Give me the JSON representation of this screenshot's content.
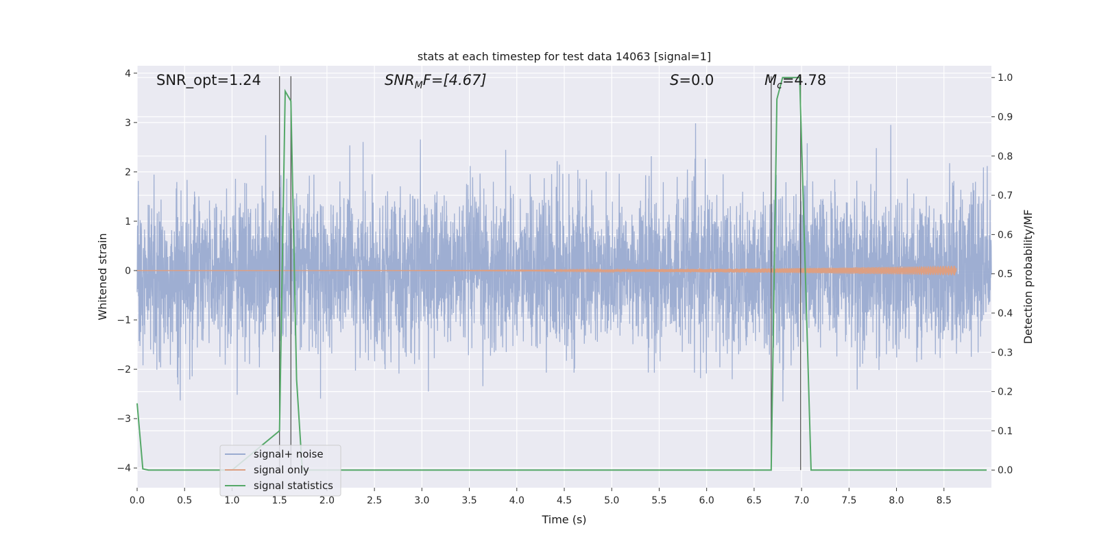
{
  "chart_data": {
    "type": "line",
    "title": "stats at each timestep for test data 14063 [signal=1]",
    "xlabel": "Time (s)",
    "ylabel_left": "Whitened strain",
    "ylabel_right": "Detection probability/MF",
    "xlim": [
      0,
      9.0
    ],
    "ylim_left": [
      -4.4,
      4.15
    ],
    "ylim_right": [
      -0.045,
      1.03
    ],
    "x_ticks": [
      0.0,
      0.5,
      1.0,
      1.5,
      2.0,
      2.5,
      3.0,
      3.5,
      4.0,
      4.5,
      5.0,
      5.5,
      6.0,
      6.5,
      7.0,
      7.5,
      8.0,
      8.5
    ],
    "x_tick_labels": [
      "0.0",
      "0.5",
      "1.0",
      "1.5",
      "2.0",
      "2.5",
      "3.0",
      "3.5",
      "4.0",
      "4.5",
      "5.0",
      "5.5",
      "6.0",
      "6.5",
      "7.0",
      "7.5",
      "8.0",
      "8.5"
    ],
    "left_ticks": [
      -4,
      -3,
      -2,
      -1,
      0,
      1,
      2,
      3,
      4
    ],
    "left_tick_labels": [
      "−4",
      "−3",
      "−2",
      "−1",
      "0",
      "1",
      "2",
      "3",
      "4"
    ],
    "right_ticks": [
      0.0,
      0.1,
      0.2,
      0.3,
      0.4,
      0.5,
      0.6,
      0.7,
      0.8,
      0.9,
      1.0
    ],
    "right_tick_labels": [
      "0.0",
      "0.1",
      "0.2",
      "0.3",
      "0.4",
      "0.5",
      "0.6",
      "0.7",
      "0.8",
      "0.9",
      "1.0"
    ],
    "grid": true,
    "legend_position": "lower-left",
    "annotations": {
      "snr_opt": "SNR_opt=1.24",
      "snr_mf_main": "SNR",
      "snr_mf_sub": "M",
      "snr_mf_tail": "F=[4.67]",
      "s_main": "S",
      "s_tail": "=0.0",
      "mc_main": "M",
      "mc_sub": "c",
      "mc_tail": "=4.78"
    },
    "vertical_lines_x": [
      1.5,
      1.62,
      6.68,
      6.99
    ],
    "series": [
      {
        "name": "signal+ noise",
        "color": "#9aabd0",
        "axis": "left",
        "description_samples": 4500,
        "noise_std": 0.78,
        "x_range": [
          0,
          9.0
        ]
      },
      {
        "name": "signal only",
        "color": "#dd9f82",
        "axis": "left",
        "chirp_start": 0.0,
        "chirp_end": 8.63,
        "chirp_max_amplitude": 0.1
      },
      {
        "name": "signal statistics",
        "color": "#55a868",
        "axis": "right",
        "x": [
          0.0,
          0.06,
          0.12,
          0.18,
          1.0,
          1.5,
          1.56,
          1.62,
          1.68,
          1.74,
          2.0,
          4.0,
          6.0,
          6.68,
          6.74,
          6.8,
          6.86,
          6.92,
          6.98,
          7.04,
          7.1,
          7.16,
          8.0,
          8.95
        ],
        "y": [
          0.17,
          0.003,
          0.0,
          0.0,
          0.0,
          0.1,
          0.965,
          0.94,
          0.23,
          0.0,
          0.0,
          0.0,
          0.0,
          0.0,
          0.945,
          1.0,
          1.0,
          1.0,
          1.0,
          0.5,
          0.0,
          0.0,
          0.0,
          0.0
        ]
      }
    ]
  }
}
